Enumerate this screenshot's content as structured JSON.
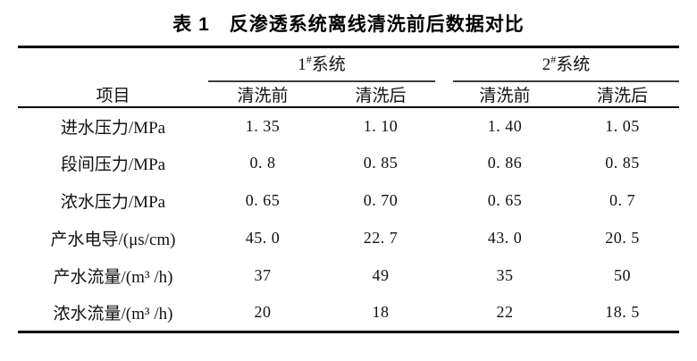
{
  "caption": {
    "number": "表 1",
    "text": "反渗透系统离线清洗前后数据对比"
  },
  "table": {
    "corner_header": "项目",
    "groups": [
      {
        "num": "1",
        "sup": "#",
        "name": "系统"
      },
      {
        "num": "2",
        "sup": "#",
        "name": "系统"
      }
    ],
    "sub_headers": [
      "清洗前",
      "清洗后",
      "清洗前",
      "清洗后"
    ],
    "rows": [
      {
        "label": "进水压力/MPa",
        "values": [
          "1. 35",
          "1. 10",
          "1. 40",
          "1. 05"
        ]
      },
      {
        "label": "段间压力/MPa",
        "values": [
          "0. 8",
          "0. 85",
          "0. 86",
          "0. 85"
        ]
      },
      {
        "label": "浓水压力/MPa",
        "values": [
          "0. 65",
          "0. 70",
          "0. 65",
          "0. 7"
        ]
      },
      {
        "label": "产水电导/(μs/cm)",
        "values": [
          "45. 0",
          "22. 7",
          "43. 0",
          "20. 5"
        ]
      },
      {
        "label": "产水流量/(m³ /h)",
        "values": [
          "37",
          "49",
          "35",
          "50"
        ]
      },
      {
        "label": "浓水流量/(m³ /h)",
        "values": [
          "20",
          "18",
          "22",
          "18. 5"
        ]
      }
    ]
  },
  "colors": {
    "background": "#ffffff",
    "text": "#111111",
    "rule_heavy": "#000000",
    "rule_group": "#3c3c3c"
  }
}
